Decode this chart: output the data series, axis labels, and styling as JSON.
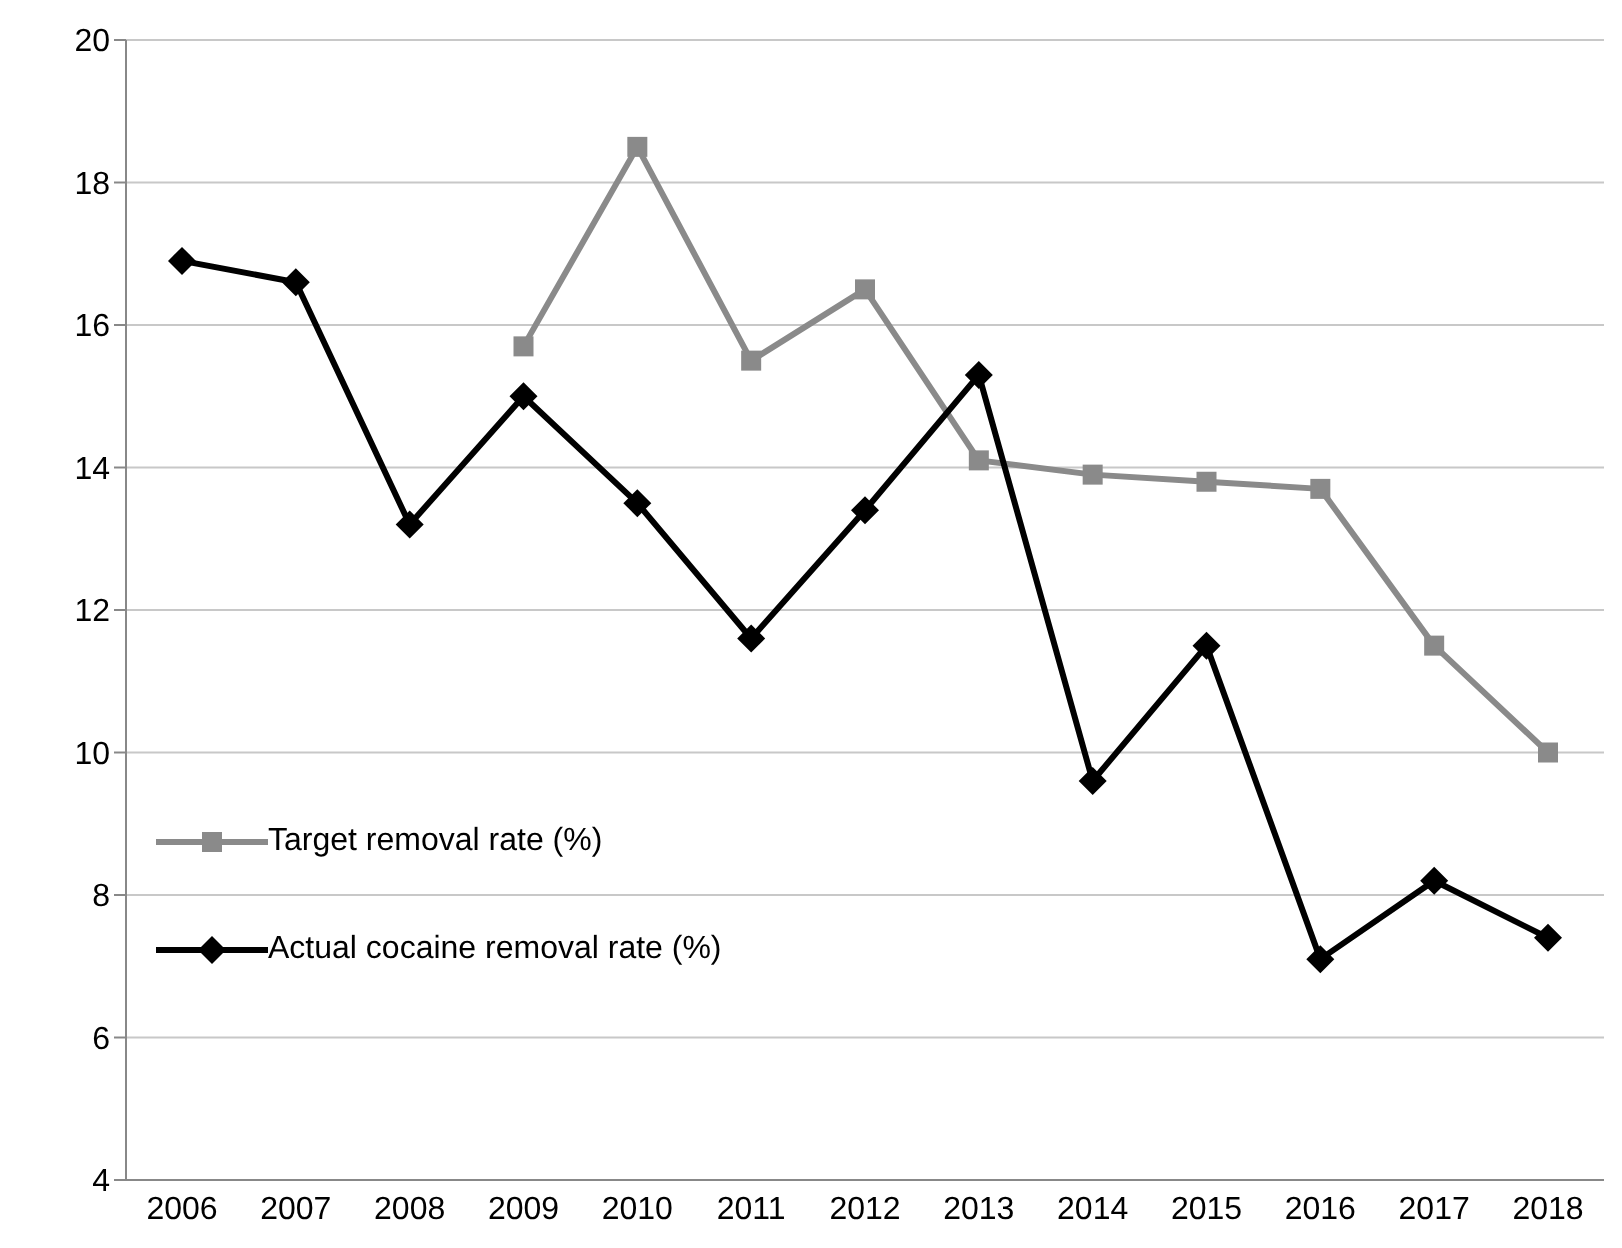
{
  "chart_data": {
    "type": "line",
    "categories": [
      "2006",
      "2007",
      "2008",
      "2009",
      "2010",
      "2011",
      "2012",
      "2013",
      "2014",
      "2015",
      "2016",
      "2017",
      "2018"
    ],
    "series": [
      {
        "name": "Target removal rate (%)",
        "color": "#8a8a8a",
        "marker": "square",
        "values": [
          null,
          null,
          null,
          15.7,
          18.5,
          15.5,
          16.5,
          14.1,
          13.9,
          13.8,
          13.7,
          11.5,
          10.0
        ]
      },
      {
        "name": "Actual cocaine removal rate (%)",
        "color": "#000000",
        "marker": "diamond",
        "values": [
          16.9,
          16.6,
          13.2,
          15.0,
          13.5,
          11.6,
          13.4,
          15.3,
          9.6,
          11.5,
          7.1,
          8.2,
          7.4
        ]
      }
    ],
    "ylim": [
      4,
      20
    ],
    "yticks": [
      4,
      6,
      8,
      10,
      12,
      14,
      16,
      18,
      20
    ],
    "grid": "y",
    "legend": "left",
    "line_style": "solid"
  }
}
